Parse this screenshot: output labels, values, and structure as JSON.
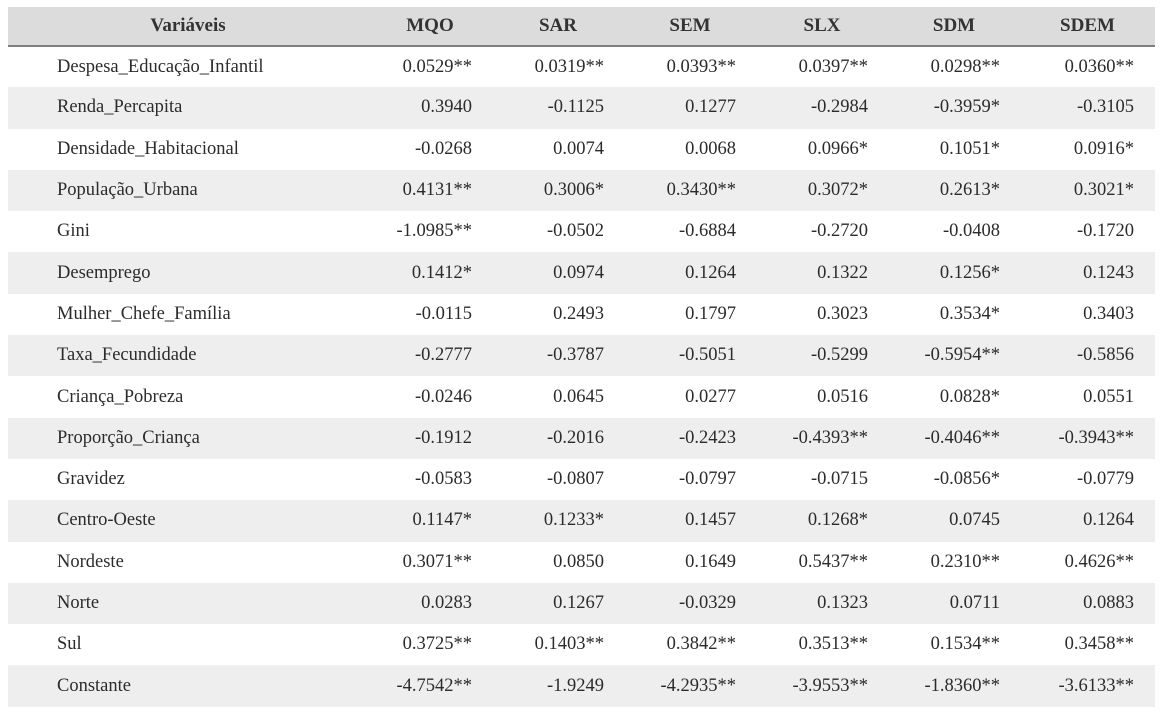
{
  "table": {
    "headers": [
      "Variáveis",
      "MQO",
      "SAR",
      "SEM",
      "SLX",
      "SDM",
      "SDEM"
    ],
    "rows": [
      [
        "Despesa_Educação_Infantil",
        "0.0529**",
        "0.0319**",
        "0.0393**",
        "0.0397**",
        "0.0298**",
        "0.0360**"
      ],
      [
        "Renda_Percapita",
        "0.3940",
        "-0.1125",
        "0.1277",
        "-0.2984",
        "-0.3959*",
        "-0.3105"
      ],
      [
        "Densidade_Habitacional",
        "-0.0268",
        "0.0074",
        "0.0068",
        "0.0966*",
        "0.1051*",
        "0.0916*"
      ],
      [
        "População_Urbana",
        "0.4131**",
        "0.3006*",
        "0.3430**",
        "0.3072*",
        "0.2613*",
        "0.3021*"
      ],
      [
        "Gini",
        "-1.0985**",
        "-0.0502",
        "-0.6884",
        "-0.2720",
        "-0.0408",
        "-0.1720"
      ],
      [
        "Desemprego",
        "0.1412*",
        "0.0974",
        "0.1264",
        "0.1322",
        "0.1256*",
        "0.1243"
      ],
      [
        "Mulher_Chefe_Família",
        "-0.0115",
        "0.2493",
        "0.1797",
        "0.3023",
        "0.3534*",
        "0.3403"
      ],
      [
        "Taxa_Fecundidade",
        "-0.2777",
        "-0.3787",
        "-0.5051",
        "-0.5299",
        "-0.5954**",
        "-0.5856"
      ],
      [
        "Criança_Pobreza",
        "-0.0246",
        "0.0645",
        "0.0277",
        "0.0516",
        "0.0828*",
        "0.0551"
      ],
      [
        "Proporção_Criança",
        "-0.1912",
        "-0.2016",
        "-0.2423",
        "-0.4393**",
        "-0.4046**",
        "-0.3943**"
      ],
      [
        "Gravidez",
        "-0.0583",
        "-0.0807",
        "-0.0797",
        "-0.0715",
        "-0.0856*",
        "-0.0779"
      ],
      [
        "Centro-Oeste",
        "0.1147*",
        "0.1233*",
        "0.1457",
        "0.1268*",
        "0.0745",
        "0.1264"
      ],
      [
        "Nordeste",
        "0.3071**",
        "0.0850",
        "0.1649",
        "0.5437**",
        "0.2310**",
        "0.4626**"
      ],
      [
        "Norte",
        "0.0283",
        "0.1267",
        "-0.0329",
        "0.1323",
        "0.0711",
        "0.0883"
      ],
      [
        "Sul",
        "0.3725**",
        "0.1403**",
        "0.3842**",
        "0.3513**",
        "0.1534**",
        "0.3458**"
      ],
      [
        "Constante",
        "-4.7542**",
        "-1.9249",
        "-4.2935**",
        "-3.9553**",
        "-1.8360**",
        "-3.6133**"
      ]
    ]
  },
  "colors": {
    "header_bg": "#dcdcdc",
    "stripe_bg": "#eeeeee",
    "row_bg": "#ffffff",
    "text": "#2b2b2b"
  }
}
